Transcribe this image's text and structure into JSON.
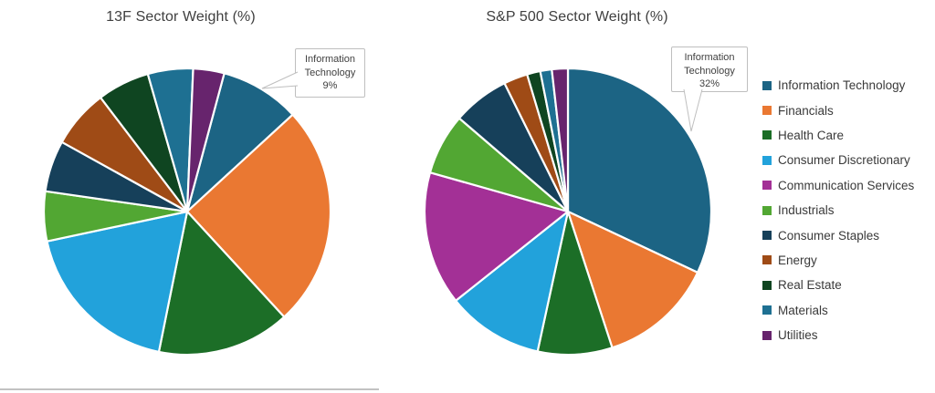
{
  "page": {
    "background": "#FFFFFF"
  },
  "styles": {
    "title_color": "#3F3F3F",
    "legend_text_color": "#3A3A3A",
    "callout_text_color": "#404040",
    "callout_border_color": "#BFBFBF",
    "slice_separator_color": "#FFFFFF",
    "divider_color": "#C2C2C2"
  },
  "legend": {
    "position": "right",
    "items": [
      {
        "label": "Information Technology",
        "color": "#1C6484"
      },
      {
        "label": "Financials",
        "color": "#EA7832"
      },
      {
        "label": "Health Care",
        "color": "#1C6E27"
      },
      {
        "label": "Consumer Discretionary",
        "color": "#22A2DB"
      },
      {
        "label": "Communication Services",
        "color": "#A33096"
      },
      {
        "label": "Industrials",
        "color": "#52A733"
      },
      {
        "label": "Consumer Staples",
        "color": "#16405A"
      },
      {
        "label": "Energy",
        "color": "#9F4B16"
      },
      {
        "label": "Real Estate",
        "color": "#0F4521"
      },
      {
        "label": "Materials",
        "color": "#1E7092"
      },
      {
        "label": "Utilities",
        "color": "#67246D"
      }
    ]
  },
  "chart_data": [
    {
      "type": "pie",
      "title": "13F Sector Weight (%)",
      "categories": [
        "Information Technology",
        "Financials",
        "Health Care",
        "Consumer Discretionary",
        "Communication Services",
        "Industrials",
        "Consumer Staples",
        "Energy",
        "Real Estate",
        "Materials",
        "Utilities"
      ],
      "values": [
        9,
        25,
        15,
        18.5,
        0,
        5.6,
        5.8,
        6.6,
        5.9,
        5.1,
        3.5
      ],
      "colors": [
        "#1C6484",
        "#EA7832",
        "#1C6E27",
        "#22A2DB",
        "#A33096",
        "#52A733",
        "#16405A",
        "#9F4B16",
        "#0F4521",
        "#1E7092",
        "#67246D"
      ],
      "start_angle_deg": 15,
      "legend_position": "none",
      "callout": {
        "text_lines": [
          "Information",
          "Technology",
          "9%"
        ],
        "target_sector": "Information Technology",
        "value_pct": 9
      }
    },
    {
      "type": "pie",
      "title": "S&P 500 Sector Weight (%)",
      "categories": [
        "Information Technology",
        "Financials",
        "Health Care",
        "Consumer Discretionary",
        "Communication Services",
        "Industrials",
        "Consumer Staples",
        "Energy",
        "Real Estate",
        "Materials",
        "Utilities"
      ],
      "values": [
        32,
        13,
        8.4,
        10.9,
        15.1,
        6.9,
        6.4,
        2.7,
        1.5,
        1.3,
        1.8
      ],
      "colors": [
        "#1C6484",
        "#EA7832",
        "#1C6E27",
        "#22A2DB",
        "#A33096",
        "#52A733",
        "#16405A",
        "#9F4B16",
        "#0F4521",
        "#1E7092",
        "#67246D"
      ],
      "start_angle_deg": 0,
      "legend_position": "right",
      "callout": {
        "text_lines": [
          "Information",
          "Technology",
          "32%"
        ],
        "target_sector": "Information Technology",
        "value_pct": 32
      }
    }
  ]
}
